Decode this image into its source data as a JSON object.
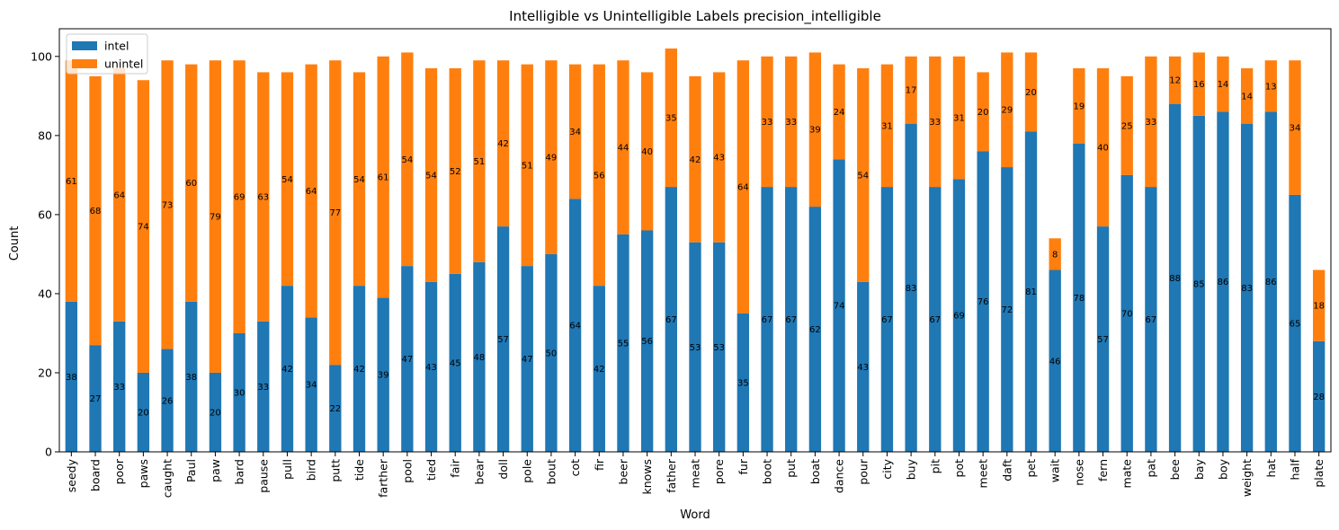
{
  "chart_data": {
    "type": "bar",
    "stacked": true,
    "title": "Intelligible vs Unintelligible Labels precision_intelligible",
    "xlabel": "Word",
    "ylabel": "Count",
    "ylim": [
      0,
      107
    ],
    "yticks": [
      0,
      20,
      40,
      60,
      80,
      100
    ],
    "legend_position": "top-left",
    "categories": [
      "seedy",
      "board",
      "poor",
      "paws",
      "caught",
      "Paul",
      "paw",
      "bard",
      "pause",
      "pull",
      "bird",
      "putt",
      "tide",
      "farther",
      "pool",
      "tied",
      "fair",
      "bear",
      "doll",
      "pole",
      "bout",
      "cot",
      "fir",
      "beer",
      "knows",
      "father",
      "meat",
      "pore",
      "fur",
      "boot",
      "put",
      "boat",
      "dance",
      "pour",
      "city",
      "buy",
      "pit",
      "pot",
      "meet",
      "daft",
      "pet",
      "wait",
      "nose",
      "fern",
      "mate",
      "pat",
      "bee",
      "bay",
      "boy",
      "weight",
      "hat",
      "half",
      "plate"
    ],
    "series": [
      {
        "name": "intel",
        "color": "#1f77b4",
        "values": [
          38,
          27,
          33,
          20,
          26,
          38,
          20,
          30,
          33,
          42,
          34,
          22,
          42,
          39,
          47,
          43,
          45,
          48,
          57,
          47,
          50,
          64,
          42,
          55,
          56,
          67,
          53,
          53,
          35,
          67,
          67,
          62,
          74,
          43,
          67,
          83,
          67,
          69,
          76,
          72,
          81,
          46,
          78,
          57,
          70,
          67,
          88,
          85,
          86,
          83,
          86,
          65,
          28
        ]
      },
      {
        "name": "unintel",
        "color": "#ff7f0e",
        "values": [
          61,
          68,
          64,
          74,
          73,
          60,
          79,
          69,
          63,
          54,
          64,
          77,
          54,
          61,
          54,
          54,
          52,
          51,
          42,
          51,
          49,
          34,
          56,
          44,
          40,
          35,
          42,
          43,
          64,
          33,
          33,
          39,
          24,
          54,
          31,
          17,
          33,
          31,
          20,
          29,
          20,
          8,
          19,
          40,
          25,
          33,
          12,
          16,
          14,
          14,
          13,
          34,
          18
        ]
      }
    ]
  }
}
